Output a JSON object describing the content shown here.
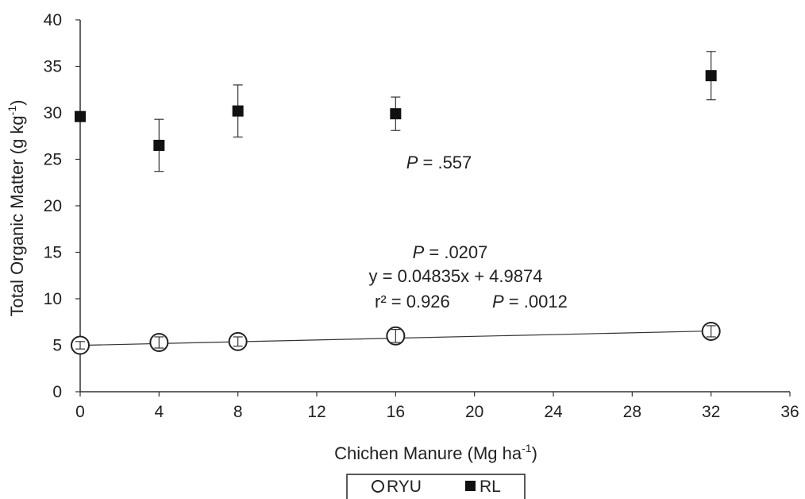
{
  "chart_data": {
    "type": "scatter",
    "title": "",
    "xlabel": "Chichen Manure (Mg ha",
    "xlabel_sup": "-1",
    "xlabel_end": ")",
    "ylabel": "Total Organic Matter (g kg",
    "ylabel_sup": "-1",
    "ylabel_end": ")",
    "xlim": [
      0,
      36
    ],
    "ylim": [
      0,
      40
    ],
    "xticks": [
      "0",
      "4",
      "8",
      "12",
      "16",
      "20",
      "24",
      "28",
      "32",
      "36"
    ],
    "yticks": [
      "0",
      "5",
      "10",
      "15",
      "20",
      "25",
      "30",
      "35",
      "40"
    ],
    "grid": false,
    "legend_position": "bottom-center",
    "series": [
      {
        "name": "RYU",
        "marker": "open-circle",
        "x": [
          0,
          4,
          8,
          16,
          32
        ],
        "y": [
          5.0,
          5.3,
          5.4,
          6.0,
          6.5
        ],
        "err": [
          0.4,
          0.6,
          0.5,
          0.7,
          0.6
        ],
        "trendline": {
          "slope": 0.04835,
          "intercept": 4.9874,
          "x_range": [
            0,
            32
          ]
        }
      },
      {
        "name": "RL",
        "marker": "filled-square",
        "x": [
          0,
          4,
          8,
          16,
          32
        ],
        "y": [
          29.6,
          26.5,
          30.2,
          29.9,
          34.0
        ],
        "err": [
          0.0,
          2.8,
          2.8,
          1.8,
          2.6
        ]
      }
    ],
    "annotations": {
      "rl_p": {
        "italic": "P",
        "text": " = .557"
      },
      "ryu_p": {
        "italic": "P",
        "text": " = .0207"
      },
      "equation": "y = 0.04835x + 4.9874",
      "r2": "r² = 0.926",
      "r2_p": {
        "italic": "P",
        "text": " = .0012"
      }
    }
  }
}
